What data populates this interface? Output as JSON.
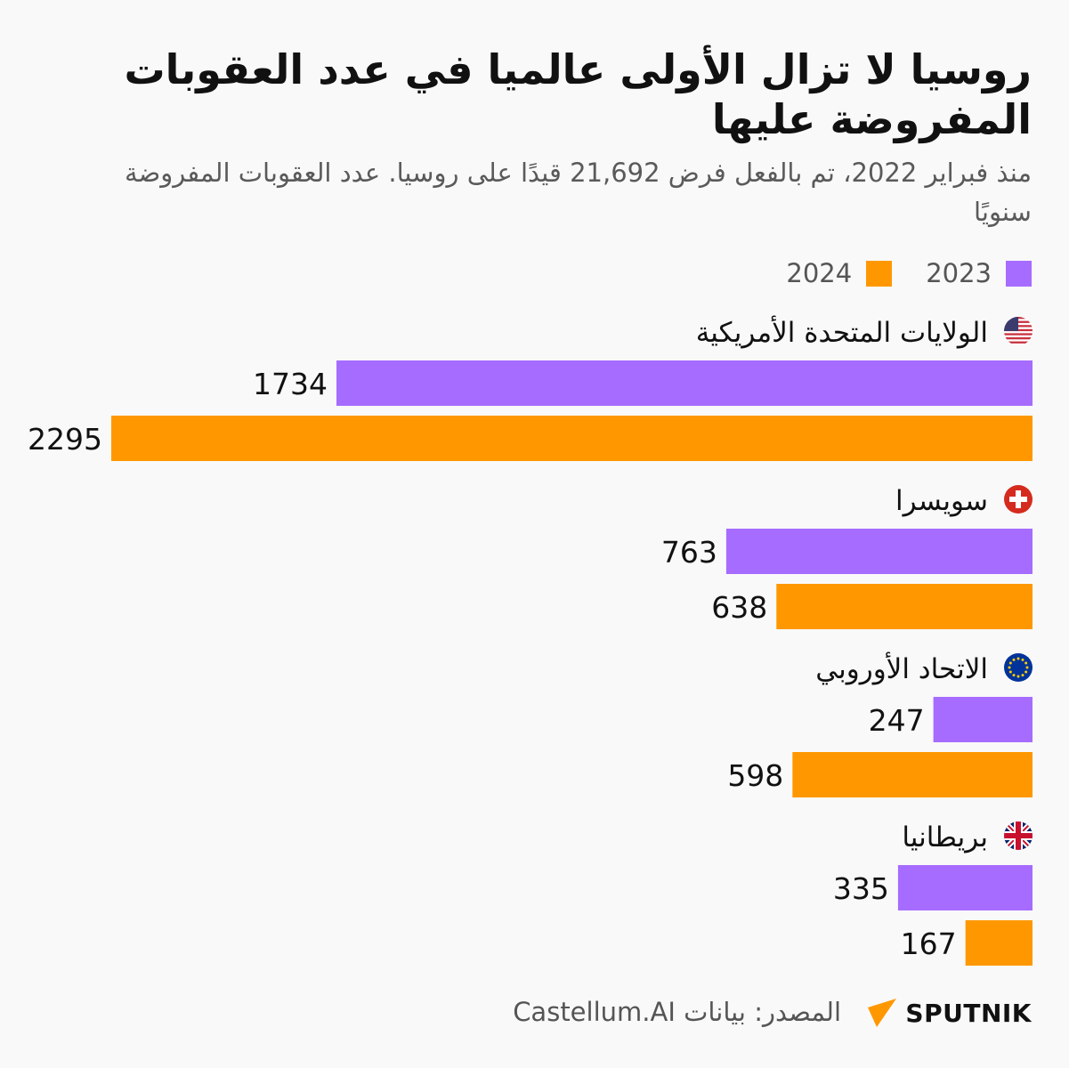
{
  "chart_data": {
    "type": "bar",
    "orientation": "horizontal",
    "title": "روسيا لا تزال الأولى عالميا في عدد العقوبات المفروضة عليها",
    "subtitle": "منذ فبراير 2022، تم بالفعل فرض 21,692 قيدًا على روسيا. عدد العقوبات المفروضة سنويًا",
    "categories": [
      "الولايات المتحدة الأمريكية",
      "سويسرا",
      "الاتحاد الأوروبي",
      "بريطانيا"
    ],
    "flags": [
      "us-flag-icon",
      "swiss-flag-icon",
      "eu-flag-icon",
      "uk-flag-icon"
    ],
    "series": [
      {
        "name": "2023",
        "color": "#a66cff",
        "values": [
          1734,
          763,
          247,
          335
        ]
      },
      {
        "name": "2024",
        "color": "#ff9800",
        "values": [
          2295,
          638,
          598,
          167
        ]
      }
    ],
    "legend_position": "top-right",
    "grid": false,
    "data_labels": true
  },
  "footer": {
    "source": "المصدر: بيانات Castellum.AI",
    "logo": "SPUTNIK"
  }
}
